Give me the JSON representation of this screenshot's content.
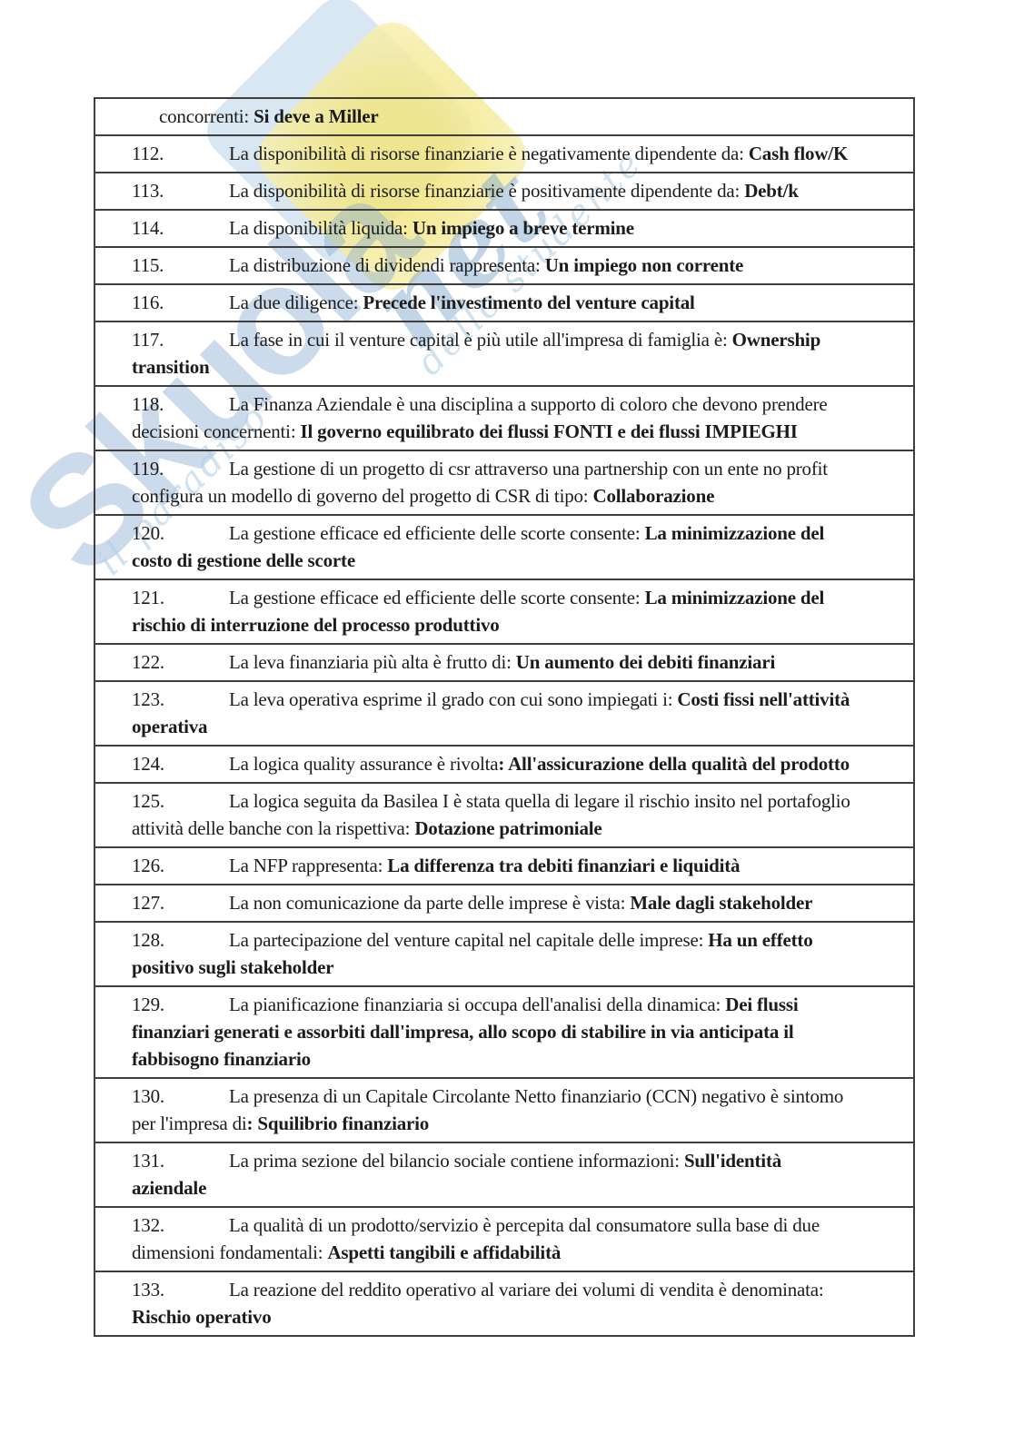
{
  "page": {
    "background": "#ffffff",
    "text_color": "#1c1c1c"
  },
  "watermark": {
    "brand_text": "Skuola",
    "brand_suffix": "net",
    "tagline_part1": "il paradiso",
    "tagline_part2": "dello studente",
    "blue": "#7fa8cf",
    "light_blue": "#b3cfe5",
    "yellow": "#f1e57f",
    "yellow_light": "#f8f1bb"
  },
  "table": {
    "border_color": "#3f3f3f",
    "rows": [
      {
        "num": "",
        "lines": [
          [
            {
              "t": "concorrenti: "
            },
            {
              "t": "Si deve a Miller",
              "b": true
            }
          ]
        ]
      },
      {
        "num": "112.",
        "lines": [
          [
            {
              "t": "La disponibilità di risorse finanziarie è negativamente dipendente da: "
            },
            {
              "t": "Cash flow/K",
              "b": true
            }
          ]
        ]
      },
      {
        "num": "113.",
        "lines": [
          [
            {
              "t": "La disponibilità di risorse finanziarie è positivamente dipendente da: "
            },
            {
              "t": "Debt/k",
              "b": true
            }
          ]
        ]
      },
      {
        "num": "114.",
        "lines": [
          [
            {
              "t": "La disponibilità liquida: "
            },
            {
              "t": "Un impiego a breve termine",
              "b": true
            }
          ]
        ]
      },
      {
        "num": "115.",
        "lines": [
          [
            {
              "t": "La distribuzione di dividendi rappresenta: "
            },
            {
              "t": "Un impiego non corrente",
              "b": true
            }
          ]
        ]
      },
      {
        "num": "116.",
        "lines": [
          [
            {
              "t": "La due diligence: "
            },
            {
              "t": "Precede l'investimento del venture capital",
              "b": true
            }
          ]
        ]
      },
      {
        "num": "117.",
        "lines": [
          [
            {
              "t": "La fase in cui il venture capital è più utile all'impresa di famiglia è: "
            },
            {
              "t": "Ownership",
              "b": true
            }
          ],
          [
            {
              "t": "transition",
              "b": true
            }
          ]
        ]
      },
      {
        "num": "118.",
        "lines": [
          [
            {
              "t": "La Finanza Aziendale è una disciplina a supporto di coloro che devono prendere"
            }
          ],
          [
            {
              "t": "decisioni concernenti: "
            },
            {
              "t": "Il governo equilibrato dei flussi FONTI e dei flussi IMPIEGHI",
              "b": true
            }
          ]
        ]
      },
      {
        "num": "119.",
        "lines": [
          [
            {
              "t": "La gestione di un progetto di csr attraverso una partnership con un ente no profit"
            }
          ],
          [
            {
              "t": "configura un modello di governo del progetto di CSR di tipo: "
            },
            {
              "t": "Collaborazione",
              "b": true
            }
          ]
        ]
      },
      {
        "num": "120.",
        "lines": [
          [
            {
              "t": "La gestione efficace ed efficiente delle scorte consente: "
            },
            {
              "t": "La minimizzazione del",
              "b": true
            }
          ],
          [
            {
              "t": "costo di gestione delle scorte",
              "b": true
            }
          ]
        ]
      },
      {
        "num": "121.",
        "lines": [
          [
            {
              "t": "La gestione efficace ed efficiente delle scorte consente: "
            },
            {
              "t": "La minimizzazione del",
              "b": true
            }
          ],
          [
            {
              "t": "rischio di interruzione del processo produttivo",
              "b": true
            }
          ]
        ]
      },
      {
        "num": "122.",
        "lines": [
          [
            {
              "t": "La leva finanziaria più alta è frutto di: "
            },
            {
              "t": "Un aumento dei debiti finanziari",
              "b": true
            }
          ]
        ]
      },
      {
        "num": "123.",
        "lines": [
          [
            {
              "t": "La leva operativa esprime il grado con cui sono impiegati i: "
            },
            {
              "t": "Costi fissi nell'attività",
              "b": true
            }
          ],
          [
            {
              "t": "operativa",
              "b": true
            }
          ]
        ]
      },
      {
        "num": "124.",
        "lines": [
          [
            {
              "t": "La logica quality assurance è rivolta"
            },
            {
              "t": ": All'assicurazione della qualità del prodotto",
              "b": true
            }
          ]
        ]
      },
      {
        "num": "125.",
        "lines": [
          [
            {
              "t": "La logica seguita da Basilea I è stata quella di legare il rischio insito nel portafoglio"
            }
          ],
          [
            {
              "t": "attività delle banche con la rispettiva: "
            },
            {
              "t": "Dotazione patrimoniale",
              "b": true
            }
          ]
        ]
      },
      {
        "num": "126.",
        "lines": [
          [
            {
              "t": "La NFP rappresenta: "
            },
            {
              "t": "La differenza tra debiti finanziari e liquidità",
              "b": true
            }
          ]
        ]
      },
      {
        "num": "127.",
        "lines": [
          [
            {
              "t": "La non comunicazione da parte delle imprese è vista: "
            },
            {
              "t": "Male dagli stakeholder",
              "b": true
            }
          ]
        ]
      },
      {
        "num": "128.",
        "lines": [
          [
            {
              "t": "La partecipazione del venture capital nel capitale delle imprese: "
            },
            {
              "t": "Ha un effetto",
              "b": true
            }
          ],
          [
            {
              "t": "positivo sugli stakeholder",
              "b": true
            }
          ]
        ]
      },
      {
        "num": "129.",
        "lines": [
          [
            {
              "t": "La pianificazione finanziaria si occupa dell'analisi della dinamica: "
            },
            {
              "t": "Dei flussi",
              "b": true
            }
          ],
          [
            {
              "t": "finanziari generati e assorbiti dall'impresa, allo scopo di stabilire in via anticipata il",
              "b": true
            }
          ],
          [
            {
              "t": "fabbisogno finanziario",
              "b": true
            }
          ]
        ]
      },
      {
        "num": "130.",
        "lines": [
          [
            {
              "t": "La presenza di un Capitale Circolante Netto finanziario (CCN) negativo è sintomo"
            }
          ],
          [
            {
              "t": "per l'impresa di"
            },
            {
              "t": ": Squilibrio finanziario",
              "b": true
            }
          ]
        ]
      },
      {
        "num": "131.",
        "lines": [
          [
            {
              "t": "La prima sezione del bilancio sociale contiene informazioni: "
            },
            {
              "t": "Sull'identità",
              "b": true
            }
          ],
          [
            {
              "t": "aziendale",
              "b": true
            }
          ]
        ]
      },
      {
        "num": "132.",
        "lines": [
          [
            {
              "t": "La qualità di un prodotto/servizio è percepita dal consumatore sulla base di due"
            }
          ],
          [
            {
              "t": "dimensioni fondamentali: "
            },
            {
              "t": "Aspetti tangibili e affidabilità",
              "b": true
            }
          ]
        ]
      },
      {
        "num": "133.",
        "lines": [
          [
            {
              "t": "La reazione del reddito operativo al variare dei volumi di vendita è denominata:"
            }
          ],
          [
            {
              "t": "Rischio operativo",
              "b": true
            }
          ]
        ]
      }
    ]
  }
}
